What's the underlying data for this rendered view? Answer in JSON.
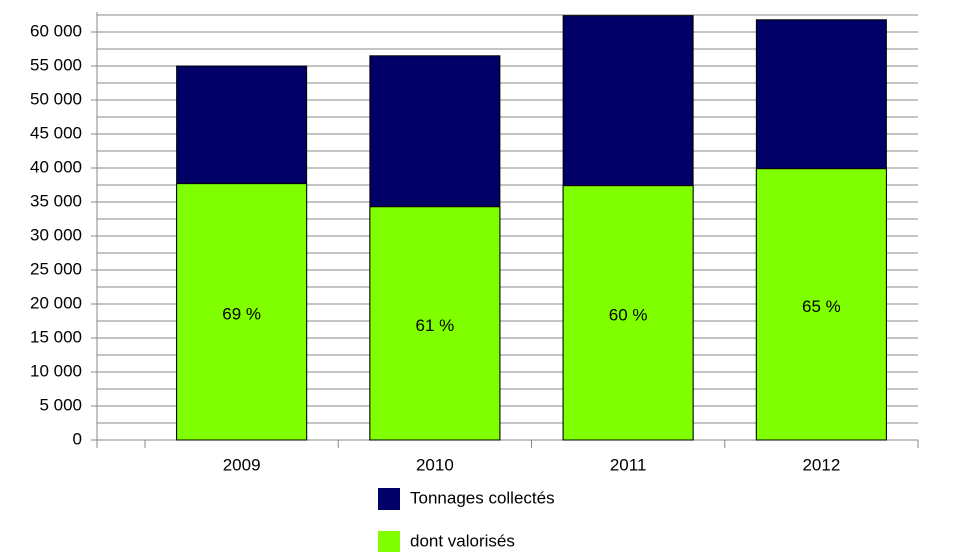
{
  "chart_data": {
    "type": "bar",
    "overlap": true,
    "categories": [
      "2009",
      "2010",
      "2011",
      "2012"
    ],
    "series": [
      {
        "name": "Tonnages collectés",
        "color": "#000066",
        "values": [
          55000,
          56500,
          62400,
          61800
        ]
      },
      {
        "name": "dont valorisés",
        "color": "#80ff00",
        "values": [
          37700,
          34300,
          37400,
          39900
        ],
        "value_labels": [
          "69 %",
          "61 %",
          "60 %",
          "65 %"
        ]
      }
    ],
    "ylim": [
      0,
      62500
    ],
    "yticks": [
      0,
      {
        "value": 5000,
        "label": "5 000"
      },
      {
        "value": 10000,
        "label": "10 000"
      },
      {
        "value": 15000,
        "label": "15 000"
      },
      {
        "value": 20000,
        "label": "20 000"
      },
      {
        "value": 25000,
        "label": "25 000"
      },
      {
        "value": 30000,
        "label": "30 000"
      },
      {
        "value": 35000,
        "label": "35 000"
      },
      {
        "value": 40000,
        "label": "40 000"
      },
      {
        "value": 45000,
        "label": "45 000"
      },
      {
        "value": 50000,
        "label": "50 000"
      },
      {
        "value": 55000,
        "label": "55 000"
      },
      {
        "value": 60000,
        "label": "60 000"
      }
    ],
    "minor_yticks": [
      2500,
      7500,
      12500,
      17500,
      22500,
      27500,
      32500,
      37500,
      42500,
      47500,
      52500,
      57500,
      62500
    ],
    "grid": true,
    "legend": "bottom"
  }
}
